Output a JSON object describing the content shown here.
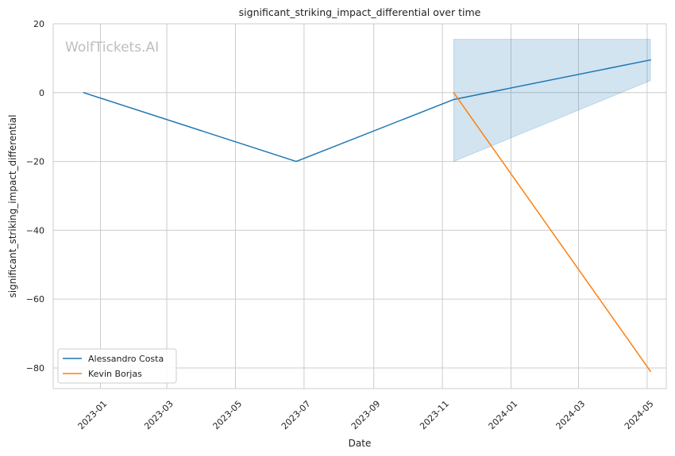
{
  "chart_data": {
    "type": "line",
    "title": "significant_striking_impact_differential over time",
    "xlabel": "Date",
    "ylabel": "significant_striking_impact_differential",
    "watermark": "WolfTickets.AI",
    "x_ticks": [
      "2023-01",
      "2023-03",
      "2023-05",
      "2023-07",
      "2023-09",
      "2023-11",
      "2024-01",
      "2024-03",
      "2024-05"
    ],
    "y_ticks": [
      20,
      0,
      -20,
      -40,
      -60,
      -80
    ],
    "y_tick_labels": [
      "20",
      "0",
      "−20",
      "−40",
      "−60",
      "−80"
    ],
    "xlim": [
      "2022-11-20",
      "2024-05-18"
    ],
    "ylim": [
      -86,
      20
    ],
    "grid": true,
    "legend_position": "lower-left",
    "series": [
      {
        "name": "Alessandro Costa",
        "color": "#1f77b4",
        "points": [
          {
            "x": "2022-12-17",
            "y": 0
          },
          {
            "x": "2023-06-24",
            "y": -20
          },
          {
            "x": "2023-11-11",
            "y": -2
          },
          {
            "x": "2024-05-04",
            "y": 9.5
          }
        ],
        "band": {
          "color": "#1f77b4",
          "points": [
            {
              "x": "2023-11-11",
              "low": -20,
              "high": 15.5
            },
            {
              "x": "2024-05-04",
              "low": 3.5,
              "high": 15.5
            }
          ]
        }
      },
      {
        "name": "Kevin Borjas",
        "color": "#ff7f0e",
        "points": [
          {
            "x": "2023-11-11",
            "y": 0
          },
          {
            "x": "2024-05-04",
            "y": -81
          }
        ]
      }
    ]
  }
}
